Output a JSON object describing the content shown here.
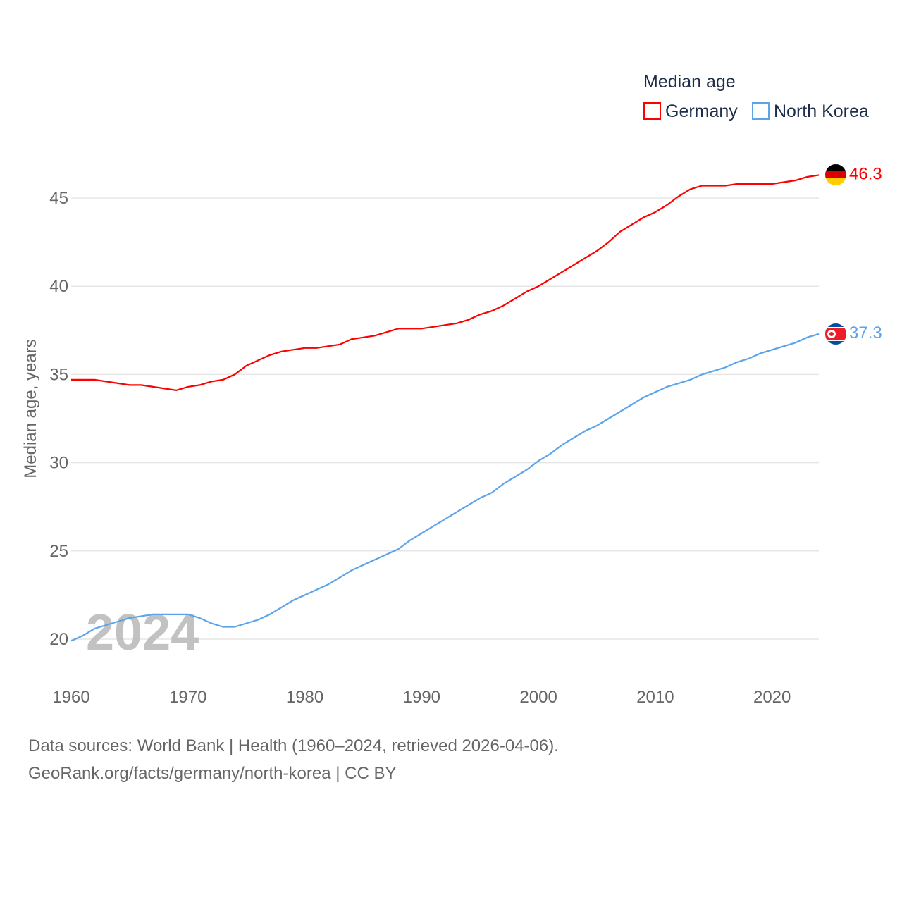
{
  "chart_data": {
    "type": "line",
    "title": "",
    "xlabel": "",
    "ylabel": "Median age, years",
    "xlim": [
      1960,
      2024
    ],
    "ylim": [
      18,
      47
    ],
    "yticks": [
      20,
      25,
      30,
      35,
      40,
      45
    ],
    "xticks": [
      1960,
      1970,
      1980,
      1990,
      2000,
      2010,
      2020
    ],
    "grid": true,
    "legend": {
      "title": "Median age",
      "placement": "top-right"
    },
    "year_watermark": "2024",
    "x": [
      1960,
      1961,
      1962,
      1963,
      1964,
      1965,
      1966,
      1967,
      1968,
      1969,
      1970,
      1971,
      1972,
      1973,
      1974,
      1975,
      1976,
      1977,
      1978,
      1979,
      1980,
      1981,
      1982,
      1983,
      1984,
      1985,
      1986,
      1987,
      1988,
      1989,
      1990,
      1991,
      1992,
      1993,
      1994,
      1995,
      1996,
      1997,
      1998,
      1999,
      2000,
      2001,
      2002,
      2003,
      2004,
      2005,
      2006,
      2007,
      2008,
      2009,
      2010,
      2011,
      2012,
      2013,
      2014,
      2015,
      2016,
      2017,
      2018,
      2019,
      2020,
      2021,
      2022,
      2023,
      2024
    ],
    "series": [
      {
        "name": "Germany",
        "color": "#ff0000",
        "end_label": "46.3",
        "values": [
          34.7,
          34.7,
          34.7,
          34.6,
          34.5,
          34.4,
          34.4,
          34.3,
          34.2,
          34.1,
          34.3,
          34.4,
          34.6,
          34.7,
          35.0,
          35.5,
          35.8,
          36.1,
          36.3,
          36.4,
          36.5,
          36.5,
          36.6,
          36.7,
          37.0,
          37.1,
          37.2,
          37.4,
          37.6,
          37.6,
          37.6,
          37.7,
          37.8,
          37.9,
          38.1,
          38.4,
          38.6,
          38.9,
          39.3,
          39.7,
          40.0,
          40.4,
          40.8,
          41.2,
          41.6,
          42.0,
          42.5,
          43.1,
          43.5,
          43.9,
          44.2,
          44.6,
          45.1,
          45.5,
          45.7,
          45.7,
          45.7,
          45.8,
          45.8,
          45.8,
          45.8,
          45.9,
          46.0,
          46.2,
          46.3
        ]
      },
      {
        "name": "North Korea",
        "color": "#5ba4ec",
        "end_label": "37.3",
        "values": [
          19.9,
          20.2,
          20.6,
          20.8,
          21.0,
          21.2,
          21.3,
          21.4,
          21.4,
          21.4,
          21.4,
          21.2,
          20.9,
          20.7,
          20.7,
          20.9,
          21.1,
          21.4,
          21.8,
          22.2,
          22.5,
          22.8,
          23.1,
          23.5,
          23.9,
          24.2,
          24.5,
          24.8,
          25.1,
          25.6,
          26.0,
          26.4,
          26.8,
          27.2,
          27.6,
          28.0,
          28.3,
          28.8,
          29.2,
          29.6,
          30.1,
          30.5,
          31.0,
          31.4,
          31.8,
          32.1,
          32.5,
          32.9,
          33.3,
          33.7,
          34.0,
          34.3,
          34.5,
          34.7,
          35.0,
          35.2,
          35.4,
          35.7,
          35.9,
          36.2,
          36.4,
          36.6,
          36.8,
          37.1,
          37.3
        ]
      }
    ]
  },
  "footer": {
    "line1": "Data sources: World Bank | Health (1960–2024, retrieved 2026-04-06).",
    "line2": "GeoRank.org/facts/germany/north-korea | CC BY"
  }
}
